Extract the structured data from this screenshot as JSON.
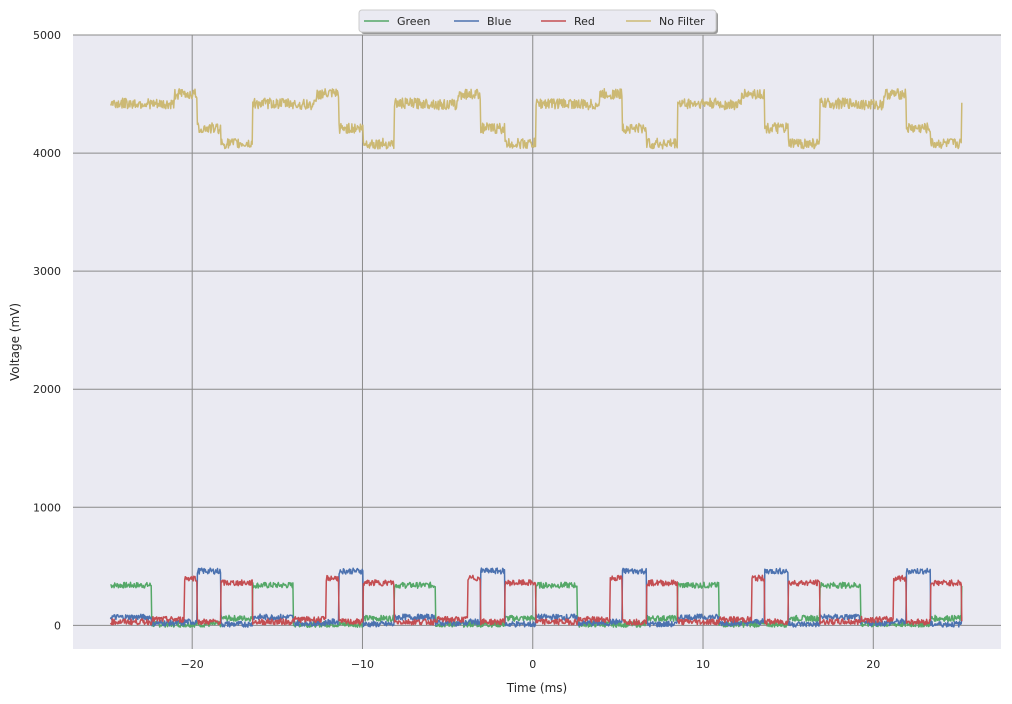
{
  "chart_data": {
    "type": "line",
    "title": "",
    "xlabel": "Time (ms)",
    "ylabel": "Voltage (mV)",
    "xlim": [
      -27,
      27.5
    ],
    "ylim": [
      -200,
      5000
    ],
    "xticks": [
      -20,
      -10,
      0,
      10,
      20
    ],
    "yticks": [
      0,
      1000,
      2000,
      3000,
      4000,
      5000
    ],
    "grid": true,
    "background": "#eaeaf2",
    "grid_color": "#8a8a8a",
    "legend_position": "top-center",
    "legend_columns": 4,
    "x_range": [
      -24.8,
      25.2
    ],
    "period_ms": 8.33,
    "noise_mV": {
      "low": 25,
      "high": 45
    },
    "series": [
      {
        "name": "Green",
        "color": "#55a868",
        "levels": [
          {
            "start": 0.0,
            "end": 0.29,
            "value": 340
          },
          {
            "start": 0.29,
            "end": 0.78,
            "value": 10
          },
          {
            "start": 0.78,
            "end": 1.0,
            "value": 60
          }
        ]
      },
      {
        "name": "Blue",
        "color": "#4c72b0",
        "levels": [
          {
            "start": 0.0,
            "end": 0.29,
            "value": 70
          },
          {
            "start": 0.29,
            "end": 0.52,
            "value": 20
          },
          {
            "start": 0.52,
            "end": 0.61,
            "value": 30
          },
          {
            "start": 0.61,
            "end": 0.78,
            "value": 460
          },
          {
            "start": 0.78,
            "end": 1.0,
            "value": 10
          }
        ]
      },
      {
        "name": "Red",
        "color": "#c44e52",
        "levels": [
          {
            "start": 0.0,
            "end": 0.29,
            "value": 30
          },
          {
            "start": 0.29,
            "end": 0.52,
            "value": 50
          },
          {
            "start": 0.52,
            "end": 0.61,
            "value": 400
          },
          {
            "start": 0.61,
            "end": 0.78,
            "value": 30
          },
          {
            "start": 0.78,
            "end": 1.0,
            "value": 360
          }
        ]
      },
      {
        "name": "No Filter",
        "color": "#ccb974",
        "levels": [
          {
            "start": 0.0,
            "end": 0.29,
            "value": 4420
          },
          {
            "start": 0.29,
            "end": 0.45,
            "value": 4410
          },
          {
            "start": 0.45,
            "end": 0.61,
            "value": 4500
          },
          {
            "start": 0.61,
            "end": 0.78,
            "value": 4210
          },
          {
            "start": 0.78,
            "end": 1.0,
            "value": 4080
          }
        ]
      }
    ]
  }
}
